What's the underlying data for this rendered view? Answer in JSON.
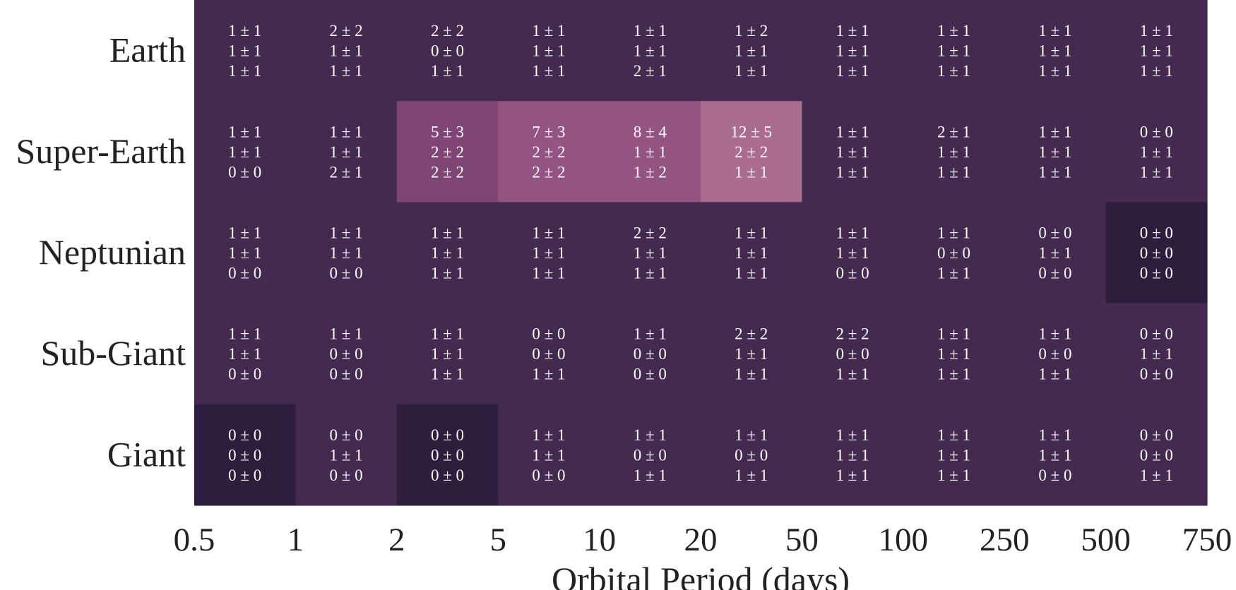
{
  "chart_data": {
    "type": "heatmap",
    "xlabel": "Orbital Period (days)",
    "ylabel": "",
    "x_tick_labels": [
      "0.5",
      "1",
      "2",
      "5",
      "10",
      "20",
      "50",
      "100",
      "250",
      "500",
      "750"
    ],
    "x_bin_edges": [
      0.5,
      1,
      2,
      5,
      10,
      20,
      50,
      100,
      250,
      500,
      750
    ],
    "rows": [
      "Earth",
      "Super-Earth",
      "Neptunian",
      "Sub-Giant",
      "Giant"
    ],
    "cells": [
      [
        [
          "1 ± 1",
          "1 ± 1",
          "1 ± 1"
        ],
        [
          "2 ± 2",
          "1 ± 1",
          "1 ± 1"
        ],
        [
          "2 ± 2",
          "0 ± 0",
          "1 ± 1"
        ],
        [
          "1 ± 1",
          "1 ± 1",
          "1 ± 1"
        ],
        [
          "1 ± 1",
          "1 ± 1",
          "2 ± 1"
        ],
        [
          "1 ± 2",
          "1 ± 1",
          "1 ± 1"
        ],
        [
          "1 ± 1",
          "1 ± 1",
          "1 ± 1"
        ],
        [
          "1 ± 1",
          "1 ± 1",
          "1 ± 1"
        ],
        [
          "1 ± 1",
          "1 ± 1",
          "1 ± 1"
        ],
        [
          "1 ± 1",
          "1 ± 1",
          "1 ± 1"
        ]
      ],
      [
        [
          "1 ± 1",
          "1 ± 1",
          "0 ± 0"
        ],
        [
          "1 ± 1",
          "1 ± 1",
          "2 ± 1"
        ],
        [
          "5 ± 3",
          "2 ± 2",
          "2 ± 2"
        ],
        [
          "7 ± 3",
          "2 ± 2",
          "2 ± 2"
        ],
        [
          "8 ± 4",
          "1 ± 1",
          "1 ± 2"
        ],
        [
          "12 ± 5",
          "2 ± 2",
          "1 ± 1"
        ],
        [
          "1 ± 1",
          "1 ± 1",
          "1 ± 1"
        ],
        [
          "2 ± 1",
          "1 ± 1",
          "1 ± 1"
        ],
        [
          "1 ± 1",
          "1 ± 1",
          "1 ± 1"
        ],
        [
          "0 ± 0",
          "1 ± 1",
          "1 ± 1"
        ]
      ],
      [
        [
          "1 ± 1",
          "1 ± 1",
          "0 ± 0"
        ],
        [
          "1 ± 1",
          "1 ± 1",
          "0 ± 0"
        ],
        [
          "1 ± 1",
          "1 ± 1",
          "1 ± 1"
        ],
        [
          "1 ± 1",
          "1 ± 1",
          "1 ± 1"
        ],
        [
          "2 ± 2",
          "1 ± 1",
          "1 ± 1"
        ],
        [
          "1 ± 1",
          "1 ± 1",
          "1 ± 1"
        ],
        [
          "1 ± 1",
          "1 ± 1",
          "0 ± 0"
        ],
        [
          "1 ± 1",
          "0 ± 0",
          "1 ± 1"
        ],
        [
          "0 ± 0",
          "1 ± 1",
          "0 ± 0"
        ],
        [
          "0 ± 0",
          "0 ± 0",
          "0 ± 0"
        ]
      ],
      [
        [
          "1 ± 1",
          "1 ± 1",
          "0 ± 0"
        ],
        [
          "1 ± 1",
          "0 ± 0",
          "0 ± 0"
        ],
        [
          "1 ± 1",
          "1 ± 1",
          "1 ± 1"
        ],
        [
          "0 ± 0",
          "0 ± 0",
          "1 ± 1"
        ],
        [
          "1 ± 1",
          "0 ± 0",
          "0 ± 0"
        ],
        [
          "2 ± 2",
          "1 ± 1",
          "1 ± 1"
        ],
        [
          "2 ± 2",
          "0 ± 0",
          "1 ± 1"
        ],
        [
          "1 ± 1",
          "1 ± 1",
          "1 ± 1"
        ],
        [
          "1 ± 1",
          "0 ± 0",
          "1 ± 1"
        ],
        [
          "0 ± 0",
          "1 ± 1",
          "0 ± 0"
        ]
      ],
      [
        [
          "0 ± 0",
          "0 ± 0",
          "0 ± 0"
        ],
        [
          "0 ± 0",
          "1 ± 1",
          "0 ± 0"
        ],
        [
          "0 ± 0",
          "0 ± 0",
          "0 ± 0"
        ],
        [
          "1 ± 1",
          "1 ± 1",
          "0 ± 0"
        ],
        [
          "1 ± 1",
          "0 ± 0",
          "1 ± 1"
        ],
        [
          "1 ± 1",
          "0 ± 0",
          "1 ± 1"
        ],
        [
          "1 ± 1",
          "1 ± 1",
          "1 ± 1"
        ],
        [
          "1 ± 1",
          "1 ± 1",
          "1 ± 1"
        ],
        [
          "1 ± 1",
          "1 ± 1",
          "0 ± 0"
        ],
        [
          "0 ± 0",
          "0 ± 0",
          "1 ± 1"
        ]
      ]
    ],
    "colormap": {
      "base": "#442a51",
      "ramp": [
        "#2d1e3d",
        "#442a51",
        "#5f3666",
        "#7f4577",
        "#935383",
        "#aa6c8f"
      ]
    }
  }
}
